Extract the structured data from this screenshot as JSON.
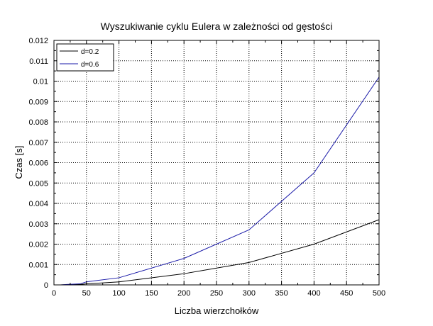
{
  "chart_data": {
    "type": "line",
    "title": "Wyszukiwanie cyklu Eulera w zależności od gęstości",
    "xlabel": "Liczba wierzchołków",
    "ylabel": "Czas [s]",
    "xlim": [
      0,
      500
    ],
    "ylim": [
      0,
      0.012
    ],
    "xticks": [
      "0",
      "50",
      "100",
      "150",
      "200",
      "250",
      "300",
      "350",
      "400",
      "450",
      "500"
    ],
    "yticks": [
      "0",
      "0.001",
      "0.002",
      "0.003",
      "0.004",
      "0.005",
      "0.006",
      "0.007",
      "0.008",
      "0.009",
      "0.01",
      "0.011",
      "0.012"
    ],
    "grid": true,
    "legend_position": "top-left",
    "series": [
      {
        "name": "d=0.2",
        "color": "#000000",
        "x": [
          10,
          20,
          40,
          50,
          100,
          200,
          300,
          400,
          500
        ],
        "y": [
          0.0,
          1e-05,
          2e-05,
          5e-05,
          0.00015,
          0.00055,
          0.0011,
          0.002,
          0.0032
        ]
      },
      {
        "name": "d=0.6",
        "color": "#1a1aa8",
        "x": [
          10,
          20,
          40,
          50,
          100,
          200,
          300,
          400,
          500
        ],
        "y": [
          0.0,
          2e-05,
          5e-05,
          0.00015,
          0.00035,
          0.0013,
          0.0027,
          0.0055,
          0.0102
        ]
      }
    ]
  }
}
